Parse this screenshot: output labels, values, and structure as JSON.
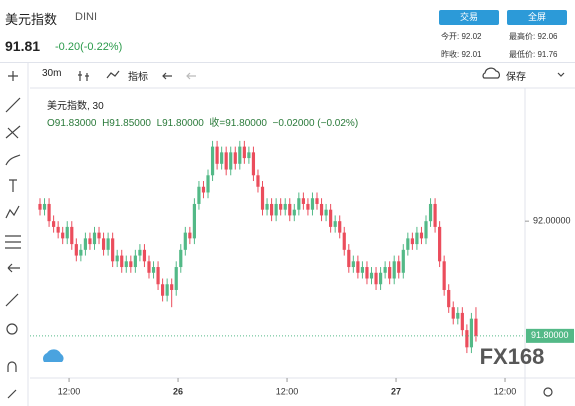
{
  "header": {
    "name": "美元指数",
    "code": "DINI",
    "price": "91.81",
    "change": "-0.20(-0.22%)",
    "trade": "交易",
    "fullscreen": "全屏",
    "open": "今开: 92.02",
    "high": "最高价: 92.06",
    "prev_close": "昨收: 92.01",
    "low": "最低价: 91.76"
  },
  "toolbar": {
    "interval": "30m",
    "indicators": "指标",
    "save": "保存"
  },
  "legend": {
    "symbol": "美元指数, 30",
    "open": "O91.83000",
    "high": "H91.85000",
    "low": "L91.80000",
    "close": "收=91.80000",
    "change": "−0.02000 (−0.02%)"
  },
  "watermark": "FX168",
  "chart_data": {
    "type": "candlestick",
    "up_color": "#53b987",
    "down_color": "#eb4d5c",
    "ylim": [
      91.73,
      92.22
    ],
    "yticks": [
      {
        "value": 92,
        "label": "92.00000"
      }
    ],
    "last_price": {
      "value": 91.8,
      "label": "91.80000"
    },
    "xlim": [
      -2.2,
      106.8
    ],
    "xticks": [
      {
        "value": 6.4,
        "label": "12:00"
      },
      {
        "value": 30.4,
        "label": "26"
      },
      {
        "value": 54.4,
        "label": "12:00"
      },
      {
        "value": 78.4,
        "label": "27"
      },
      {
        "value": 102.4,
        "label": "12:00"
      }
    ],
    "ohlc": [
      [
        92.03,
        92.04,
        92.01,
        92.02
      ],
      [
        92.02,
        92.04,
        92.01,
        92.03
      ],
      [
        92.03,
        92.04,
        91.99,
        92.0
      ],
      [
        92.0,
        92.01,
        91.98,
        91.99
      ],
      [
        91.99,
        92.0,
        91.97,
        91.98
      ],
      [
        91.98,
        91.99,
        91.96,
        91.97
      ],
      [
        91.97,
        92.0,
        91.96,
        91.99
      ],
      [
        91.99,
        92.0,
        91.95,
        91.96
      ],
      [
        91.96,
        91.97,
        91.93,
        91.94
      ],
      [
        91.94,
        91.96,
        91.93,
        91.95
      ],
      [
        91.95,
        91.98,
        91.94,
        91.97
      ],
      [
        91.97,
        91.98,
        91.95,
        91.96
      ],
      [
        91.96,
        91.99,
        91.95,
        91.98
      ],
      [
        91.98,
        91.99,
        91.96,
        91.97
      ],
      [
        91.97,
        91.98,
        91.94,
        91.95
      ],
      [
        91.95,
        91.98,
        91.94,
        91.97
      ],
      [
        91.97,
        91.98,
        91.92,
        91.93
      ],
      [
        91.93,
        91.95,
        91.92,
        91.94
      ],
      [
        91.94,
        91.95,
        91.91,
        91.92
      ],
      [
        91.92,
        91.94,
        91.91,
        91.93
      ],
      [
        91.93,
        91.94,
        91.91,
        91.92
      ],
      [
        91.92,
        91.95,
        91.91,
        91.94
      ],
      [
        91.94,
        91.96,
        91.93,
        91.95
      ],
      [
        91.95,
        91.96,
        91.92,
        91.93
      ],
      [
        91.93,
        91.94,
        91.9,
        91.91
      ],
      [
        91.91,
        91.93,
        91.9,
        91.92
      ],
      [
        91.92,
        91.93,
        91.88,
        91.89
      ],
      [
        91.89,
        91.9,
        91.86,
        91.87
      ],
      [
        91.87,
        91.9,
        91.86,
        91.89
      ],
      [
        91.89,
        91.9,
        91.85,
        91.88
      ],
      [
        91.88,
        91.93,
        91.87,
        91.92
      ],
      [
        91.92,
        91.96,
        91.91,
        91.95
      ],
      [
        91.95,
        91.99,
        91.94,
        91.98
      ],
      [
        91.98,
        91.99,
        91.96,
        91.97
      ],
      [
        91.97,
        92.04,
        91.96,
        92.03
      ],
      [
        92.03,
        92.07,
        92.02,
        92.06
      ],
      [
        92.06,
        92.07,
        92.04,
        92.05
      ],
      [
        92.05,
        92.09,
        92.04,
        92.08
      ],
      [
        92.08,
        92.14,
        92.07,
        92.13
      ],
      [
        92.13,
        92.14,
        92.09,
        92.1
      ],
      [
        92.1,
        92.13,
        92.09,
        92.12
      ],
      [
        92.12,
        92.13,
        92.08,
        92.09
      ],
      [
        92.09,
        92.13,
        92.08,
        92.12
      ],
      [
        92.12,
        92.13,
        92.09,
        92.1
      ],
      [
        92.1,
        92.14,
        92.09,
        92.13
      ],
      [
        92.13,
        92.14,
        92.1,
        92.11
      ],
      [
        92.11,
        92.13,
        92.1,
        92.12
      ],
      [
        92.12,
        92.13,
        92.07,
        92.08
      ],
      [
        92.08,
        92.09,
        92.05,
        92.06
      ],
      [
        92.06,
        92.07,
        92.01,
        92.02
      ],
      [
        92.02,
        92.04,
        92.01,
        92.03
      ],
      [
        92.03,
        92.04,
        92.0,
        92.01
      ],
      [
        92.01,
        92.04,
        92.0,
        92.03
      ],
      [
        92.03,
        92.04,
        92.01,
        92.02
      ],
      [
        92.02,
        92.04,
        92.01,
        92.03
      ],
      [
        92.03,
        92.04,
        92.0,
        92.01
      ],
      [
        92.01,
        92.03,
        92.0,
        92.02
      ],
      [
        92.02,
        92.05,
        92.01,
        92.04
      ],
      [
        92.04,
        92.05,
        92.02,
        92.03
      ],
      [
        92.03,
        92.04,
        92.01,
        92.02
      ],
      [
        92.02,
        92.05,
        92.01,
        92.04
      ],
      [
        92.04,
        92.05,
        92.02,
        92.03
      ],
      [
        92.03,
        92.04,
        92.0,
        92.01
      ],
      [
        92.01,
        92.03,
        92.0,
        92.02
      ],
      [
        92.02,
        92.03,
        91.98,
        91.99
      ],
      [
        91.99,
        92.01,
        91.98,
        92.0
      ],
      [
        92.0,
        92.01,
        91.97,
        91.98
      ],
      [
        91.98,
        91.99,
        91.94,
        91.95
      ],
      [
        91.95,
        91.96,
        91.91,
        91.92
      ],
      [
        91.92,
        91.94,
        91.91,
        91.93
      ],
      [
        91.93,
        91.94,
        91.9,
        91.91
      ],
      [
        91.91,
        91.93,
        91.9,
        91.92
      ],
      [
        91.92,
        91.93,
        91.89,
        91.9
      ],
      [
        91.9,
        91.92,
        91.89,
        91.91
      ],
      [
        91.91,
        91.92,
        91.88,
        91.89
      ],
      [
        91.89,
        91.92,
        91.88,
        91.91
      ],
      [
        91.91,
        91.93,
        91.9,
        91.92
      ],
      [
        91.92,
        91.93,
        91.89,
        91.9
      ],
      [
        91.9,
        91.94,
        91.89,
        91.93
      ],
      [
        91.93,
        91.94,
        91.9,
        91.91
      ],
      [
        91.91,
        91.96,
        91.9,
        91.95
      ],
      [
        91.95,
        91.98,
        91.94,
        91.97
      ],
      [
        91.97,
        91.98,
        91.95,
        91.96
      ],
      [
        91.96,
        91.99,
        91.95,
        91.98
      ],
      [
        91.98,
        91.99,
        91.96,
        91.97
      ],
      [
        91.97,
        92.01,
        91.96,
        92.0
      ],
      [
        92.0,
        92.04,
        91.99,
        92.03
      ],
      [
        92.03,
        92.04,
        91.98,
        91.99
      ],
      [
        91.99,
        92.0,
        91.92,
        91.93
      ],
      [
        91.93,
        91.94,
        91.87,
        91.88
      ],
      [
        91.88,
        91.89,
        91.84,
        91.85
      ],
      [
        91.85,
        91.86,
        91.82,
        91.83
      ],
      [
        91.83,
        91.85,
        91.82,
        91.84
      ],
      [
        91.84,
        91.85,
        91.8,
        91.81
      ],
      [
        91.81,
        91.82,
        91.77,
        91.78
      ],
      [
        91.78,
        91.84,
        91.77,
        91.83
      ],
      [
        91.83,
        91.85,
        91.79,
        91.8
      ]
    ]
  }
}
